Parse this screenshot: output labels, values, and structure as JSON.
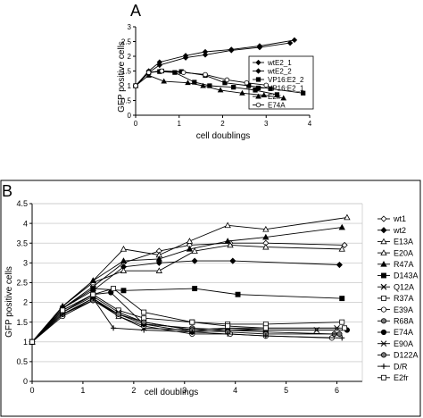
{
  "chart_data": [
    {
      "panel_label": "A",
      "type": "line",
      "ylabel": "GFP positive cells",
      "xlabel": "cell doublings",
      "xlim": [
        0,
        4
      ],
      "ylim": [
        0,
        3
      ],
      "x_ticks": [
        0,
        1,
        2,
        3,
        4
      ],
      "y_ticks": [
        0,
        0.5,
        1,
        1.5,
        2,
        2.5,
        3
      ],
      "x_tick_labels": [
        "0",
        "1",
        "2",
        "3",
        "4"
      ],
      "y_tick_labels": [
        "0",
        "0.5",
        "1",
        "1.5",
        "2",
        "2.5",
        "3"
      ],
      "grid": false,
      "legend_position": "right",
      "series": [
        {
          "name": "wtE2_1",
          "marker": "diamond",
          "fill": "filled",
          "x": [
            0,
            0.3,
            0.55,
            1.15,
            1.6,
            2.2,
            2.85,
            3.65
          ],
          "y": [
            1,
            1.5,
            1.8,
            2.02,
            2.15,
            2.23,
            2.35,
            2.55
          ]
        },
        {
          "name": "wtE2_2",
          "marker": "diamond",
          "fill": "filled",
          "x": [
            0,
            0.3,
            0.55,
            1.15,
            1.6,
            2.2,
            2.85,
            3.55
          ],
          "y": [
            1,
            1.45,
            1.7,
            1.95,
            2.05,
            2.2,
            2.3,
            2.45
          ]
        },
        {
          "name": "VP16:E2_2",
          "marker": "square",
          "fill": "filled",
          "x": [
            0,
            0.3,
            0.6,
            1.05,
            1.6,
            2.05,
            2.6,
            3.1,
            3.85
          ],
          "y": [
            1,
            1.45,
            1.5,
            1.48,
            1.35,
            1.1,
            1.0,
            0.9,
            0.75
          ]
        },
        {
          "name": "VP16:E2_1",
          "marker": "square",
          "fill": "filled",
          "x": [
            0,
            0.3,
            0.55,
            0.9,
            1.35,
            1.7,
            2.25,
            2.75,
            3.25
          ],
          "y": [
            1,
            1.45,
            1.48,
            1.45,
            1.12,
            1.0,
            0.95,
            0.85,
            0.7
          ]
        },
        {
          "name": "E2fr",
          "marker": "triangle",
          "fill": "filled",
          "x": [
            0,
            0.3,
            0.65,
            1.2,
            1.55,
            1.95,
            2.45,
            2.95,
            3.4
          ],
          "y": [
            1,
            1.35,
            1.15,
            1.1,
            1.0,
            0.85,
            0.75,
            0.68,
            0.58
          ]
        },
        {
          "name": "E74A",
          "marker": "circle",
          "fill": "open",
          "x": [
            0,
            0.3,
            0.6,
            1.1,
            1.6,
            2.1,
            2.55,
            3.0
          ],
          "y": [
            1,
            1.45,
            1.5,
            1.45,
            1.38,
            1.2,
            1.1,
            1.02
          ]
        }
      ]
    },
    {
      "panel_label": "B",
      "type": "line",
      "ylabel": "GFP positive cells",
      "xlabel": "cell doublings",
      "xlim": [
        0,
        6.5
      ],
      "ylim": [
        0,
        4.5
      ],
      "x_ticks": [
        0,
        1,
        2,
        3,
        4,
        5,
        6
      ],
      "y_ticks": [
        0,
        0.5,
        1,
        1.5,
        2,
        2.5,
        3,
        3.5,
        4,
        4.5
      ],
      "x_tick_labels": [
        "0",
        "1",
        "2",
        "3",
        "4",
        "5",
        "6"
      ],
      "y_tick_labels": [
        "0",
        "0.5",
        "1",
        "1.5",
        "2",
        "2.5",
        "3",
        "3.5",
        "4",
        "4.5"
      ],
      "grid": true,
      "legend_position": "right",
      "series": [
        {
          "name": "wt1",
          "marker": "diamond",
          "fill": "open",
          "x": [
            0,
            0.6,
            1.2,
            1.8,
            2.5,
            3.1,
            3.9,
            4.6,
            6.15
          ],
          "y": [
            1,
            1.85,
            2.4,
            3.0,
            3.3,
            3.45,
            3.5,
            3.5,
            3.45
          ]
        },
        {
          "name": "wt2",
          "marker": "diamond",
          "fill": "filled",
          "x": [
            0,
            0.6,
            1.2,
            1.8,
            2.5,
            3.2,
            3.95,
            6.05
          ],
          "y": [
            1,
            1.85,
            2.3,
            2.9,
            3.0,
            3.05,
            3.05,
            2.95
          ]
        },
        {
          "name": "E13A",
          "marker": "triangle",
          "fill": "open",
          "x": [
            0,
            0.6,
            1.2,
            1.8,
            2.5,
            3.1,
            3.85,
            4.6,
            6.2
          ],
          "y": [
            1,
            1.9,
            2.55,
            3.35,
            3.2,
            3.55,
            3.95,
            3.85,
            4.15
          ]
        },
        {
          "name": "E20A",
          "marker": "triangle",
          "fill": "open",
          "x": [
            0,
            0.6,
            1.2,
            1.8,
            2.5,
            3.2,
            3.9,
            4.6,
            6.1
          ],
          "y": [
            1,
            1.9,
            2.5,
            2.8,
            2.8,
            3.3,
            3.45,
            3.4,
            3.35
          ]
        },
        {
          "name": "R47A",
          "marker": "triangle",
          "fill": "filled",
          "x": [
            0,
            0.6,
            1.2,
            1.8,
            2.5,
            3.1,
            3.85,
            4.6,
            6.1
          ],
          "y": [
            1,
            1.9,
            2.55,
            3.05,
            3.1,
            3.35,
            3.55,
            3.65,
            3.9
          ]
        },
        {
          "name": "D143A",
          "marker": "square",
          "fill": "filled",
          "x": [
            0,
            0.6,
            1.2,
            1.8,
            3.2,
            4.05,
            6.1
          ],
          "y": [
            1,
            1.85,
            2.35,
            2.3,
            2.35,
            2.2,
            2.1
          ]
        },
        {
          "name": "Q12A",
          "marker": "x",
          "fill": "open",
          "x": [
            0,
            0.6,
            1.2,
            1.7,
            2.2,
            3.15,
            3.85,
            4.6,
            5.6
          ],
          "y": [
            1,
            1.7,
            2.1,
            1.65,
            1.35,
            1.3,
            1.35,
            1.3,
            1.3
          ]
        },
        {
          "name": "R37A",
          "marker": "square",
          "fill": "open",
          "x": [
            0,
            0.6,
            1.2,
            1.7,
            2.2,
            3.15,
            3.85,
            4.6,
            6.1
          ],
          "y": [
            1,
            1.8,
            2.2,
            1.8,
            1.6,
            1.5,
            1.45,
            1.45,
            1.5
          ]
        },
        {
          "name": "E39A",
          "marker": "circle",
          "fill": "open",
          "x": [
            0,
            0.6,
            1.2,
            1.7,
            2.2,
            3.15,
            3.9,
            4.6,
            5.9
          ],
          "y": [
            1,
            1.65,
            2.05,
            1.65,
            1.4,
            1.2,
            1.2,
            1.15,
            1.1
          ]
        },
        {
          "name": "R68A",
          "marker": "circle",
          "fill": "grey",
          "x": [
            0,
            0.6,
            1.2,
            1.7,
            2.2,
            3.15,
            3.85,
            4.6,
            5.95
          ],
          "y": [
            1,
            1.7,
            2.1,
            1.7,
            1.45,
            1.35,
            1.3,
            1.25,
            1.2
          ]
        },
        {
          "name": "E74A",
          "marker": "circle",
          "fill": "filled",
          "x": [
            0,
            0.6,
            1.2,
            1.55,
            2.2,
            3.15,
            3.85,
            4.6,
            6.2
          ],
          "y": [
            1,
            1.75,
            2.2,
            2.25,
            1.45,
            1.25,
            1.3,
            1.3,
            1.3
          ]
        },
        {
          "name": "E90A",
          "marker": "asterisk",
          "fill": "open",
          "x": [
            0,
            0.6,
            1.2,
            1.7,
            2.2,
            3.15,
            3.85,
            4.6,
            6.0
          ],
          "y": [
            1,
            1.75,
            2.15,
            1.75,
            1.5,
            1.3,
            1.35,
            1.35,
            1.35
          ]
        },
        {
          "name": "D122A",
          "marker": "circle",
          "fill": "grey",
          "x": [
            0,
            0.6,
            1.2,
            1.7,
            2.2,
            3.15,
            3.85,
            4.6,
            6.05
          ],
          "y": [
            1,
            1.7,
            2.05,
            1.7,
            1.5,
            1.3,
            1.25,
            1.2,
            1.2
          ]
        },
        {
          "name": "D/R",
          "marker": "plus",
          "fill": "open",
          "x": [
            0,
            0.6,
            1.2,
            1.6,
            2.2,
            3.15,
            3.85,
            4.6,
            6.1
          ],
          "y": [
            1,
            1.7,
            2.1,
            1.35,
            1.3,
            1.25,
            1.2,
            1.15,
            1.1
          ]
        },
        {
          "name": "E2fr",
          "marker": "square",
          "fill": "open",
          "x": [
            0,
            0.6,
            1.2,
            1.6,
            2.2,
            3.15,
            3.85,
            4.6,
            6.15
          ],
          "y": [
            1,
            1.8,
            2.2,
            2.35,
            1.75,
            1.5,
            1.4,
            1.35,
            1.35
          ]
        }
      ]
    }
  ]
}
